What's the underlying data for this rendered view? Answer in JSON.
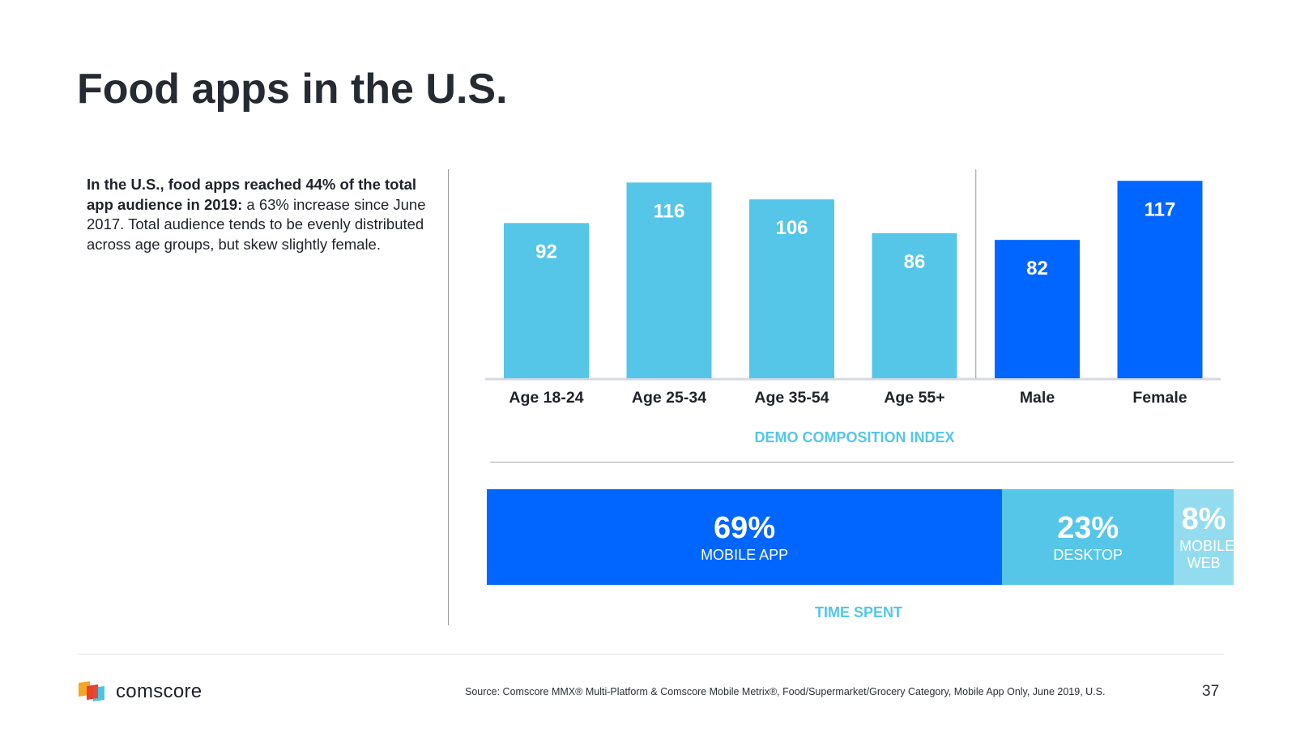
{
  "title": "Food apps in the U.S.",
  "description": {
    "bold": "In the U.S., food apps reached 44% of the total app audience in 2019:",
    "rest": " a 63% increase since June 2017. Total audience tends to be evenly distributed across age groups, but skew slightly female."
  },
  "chart_data": {
    "type": "bar",
    "title": "DEMO COMPOSITION INDEX",
    "categories": [
      "Age 18-24",
      "Age 25-34",
      "Age 35-54",
      "Age 55+",
      "Male",
      "Female"
    ],
    "values": [
      92,
      116,
      106,
      86,
      82,
      117
    ],
    "groups": [
      "age",
      "age",
      "age",
      "age",
      "gender",
      "gender"
    ],
    "ylim": [
      0,
      120
    ],
    "colors": {
      "age": "#55c6e8",
      "gender": "#0066ff"
    }
  },
  "time_spent": {
    "title": "TIME SPENT",
    "segments": [
      {
        "pct": "69%",
        "label": "MOBILE APP",
        "value": 69,
        "color": "#0066ff"
      },
      {
        "pct": "23%",
        "label": "DESKTOP",
        "value": 23,
        "color": "#55c6e8"
      },
      {
        "pct": "8%",
        "label": "MOBILE WEB",
        "value": 8,
        "color": "#93dcf0"
      }
    ]
  },
  "footer": {
    "brand": "comscore",
    "source": "Source: Comscore MMX® Multi-Platform & Comscore Mobile Metrix®, Food/Supermarket/Grocery Category, Mobile App Only, June 2019, U.S.",
    "page": "37"
  }
}
